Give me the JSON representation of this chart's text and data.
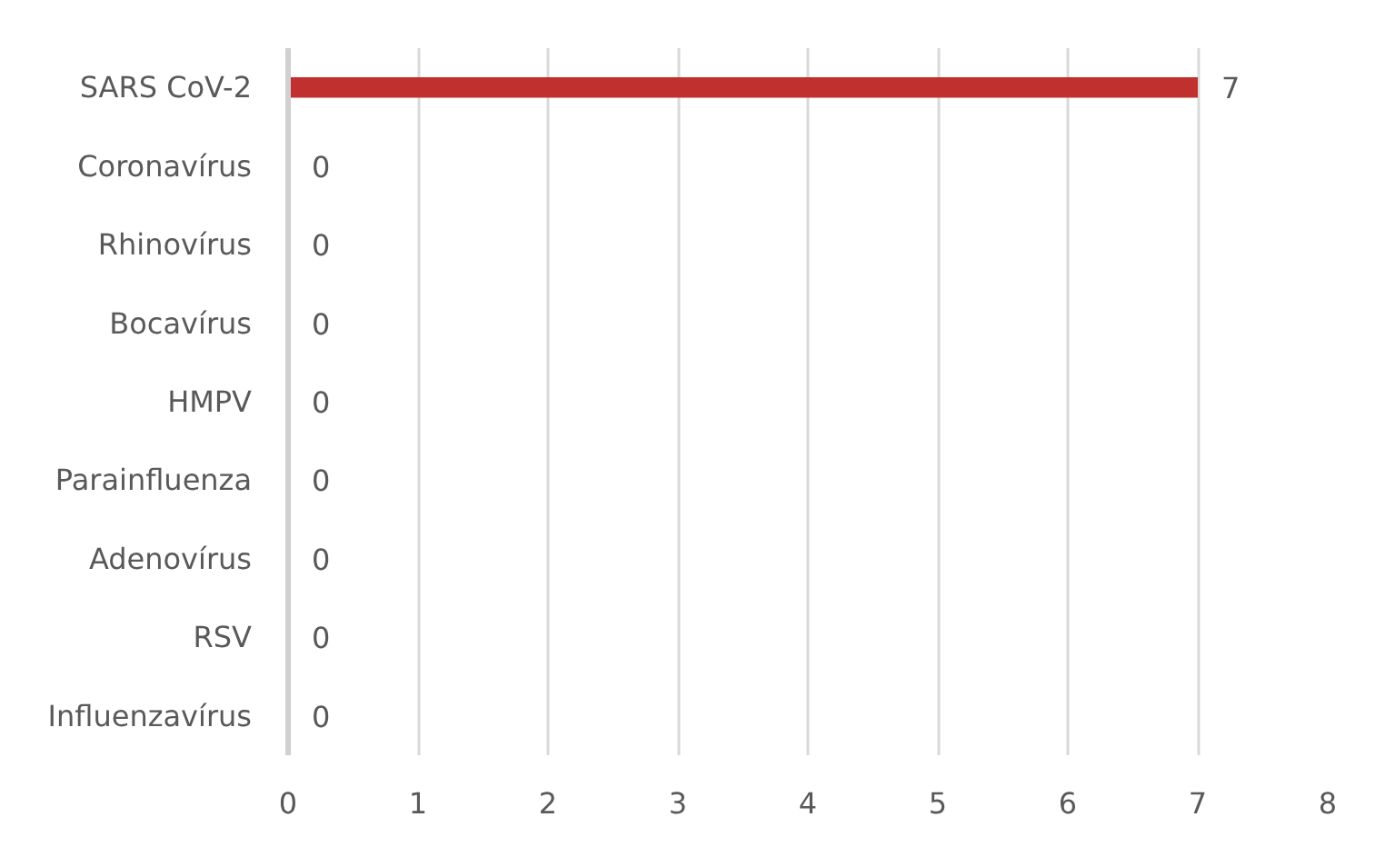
{
  "chart_data": {
    "type": "bar",
    "orientation": "horizontal",
    "categories": [
      "SARS CoV-2",
      "Coronavírus",
      "Rhinovírus",
      "Bocavírus",
      "HMPV",
      "Parainfluenza",
      "Adenovírus",
      "RSV",
      "Influenzavírus"
    ],
    "values": [
      7,
      0,
      0,
      0,
      0,
      0,
      0,
      0,
      0
    ],
    "color": "#c0302e",
    "xlim": [
      0,
      8
    ],
    "xticks": [
      0,
      1,
      2,
      3,
      4,
      5,
      6,
      7,
      8
    ],
    "grid": "x",
    "data_labels": true
  }
}
